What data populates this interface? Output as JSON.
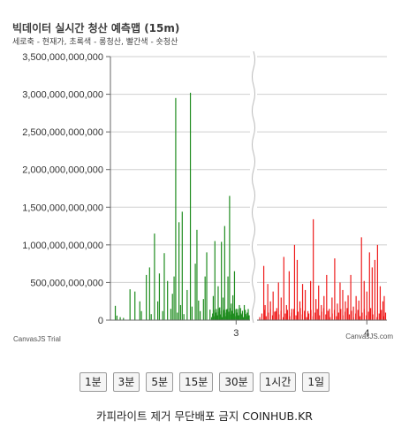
{
  "chart_data": {
    "type": "bar",
    "title": "빅데이터 실시간 청산 예측맵 (15m)",
    "subtitle": "세로축 - 현재가, 초록색 - 롱청산, 빨간색 - 숏청산",
    "ylim": [
      0,
      3500000000000
    ],
    "y_ticks": [
      {
        "value": 0,
        "label": "0"
      },
      {
        "value": 500000000000,
        "label": "500,000,000,000"
      },
      {
        "value": 1000000000000,
        "label": "1,000,000,000,000"
      },
      {
        "value": 1500000000000,
        "label": "1,500,000,000,000"
      },
      {
        "value": 2000000000000,
        "label": "2,000,000,000,000"
      },
      {
        "value": 2500000000000,
        "label": "2,500,000,000,000"
      },
      {
        "value": 3000000000000,
        "label": "3,000,000,000,000"
      },
      {
        "value": 3500000000000,
        "label": "3,500,000,000,000"
      }
    ],
    "x_ticks": [
      {
        "value": 3,
        "label": "3"
      },
      {
        "value": 4,
        "label": "4"
      }
    ],
    "grid": true,
    "axis_break": "wavy vertical break between the two x ranges",
    "series": [
      {
        "color": "#1f8c1f",
        "points": [
          [
            2.26,
            190000000000
          ],
          [
            2.27,
            60000000000
          ],
          [
            2.29,
            40000000000
          ],
          [
            2.31,
            30000000000
          ],
          [
            2.35,
            410000000000
          ],
          [
            2.38,
            380000000000
          ],
          [
            2.41,
            250000000000
          ],
          [
            2.42,
            120000000000
          ],
          [
            2.45,
            600000000000
          ],
          [
            2.47,
            700000000000
          ],
          [
            2.48,
            80000000000
          ],
          [
            2.5,
            1150000000000
          ],
          [
            2.52,
            250000000000
          ],
          [
            2.53,
            620000000000
          ],
          [
            2.55,
            120000000000
          ],
          [
            2.56,
            890000000000
          ],
          [
            2.58,
            520000000000
          ],
          [
            2.6,
            150000000000
          ],
          [
            2.61,
            350000000000
          ],
          [
            2.62,
            580000000000
          ],
          [
            2.63,
            2950000000000
          ],
          [
            2.64,
            100000000000
          ],
          [
            2.65,
            1300000000000
          ],
          [
            2.66,
            200000000000
          ],
          [
            2.67,
            1440000000000
          ],
          [
            2.68,
            80000000000
          ],
          [
            2.7,
            400000000000
          ],
          [
            2.72,
            3020000000000
          ],
          [
            2.73,
            180000000000
          ],
          [
            2.75,
            750000000000
          ],
          [
            2.76,
            1200000000000
          ],
          [
            2.77,
            260000000000
          ],
          [
            2.78,
            120000000000
          ],
          [
            2.8,
            280000000000
          ],
          [
            2.81,
            580000000000
          ],
          [
            2.82,
            900000000000
          ],
          [
            2.84,
            140000000000
          ],
          [
            2.86,
            320000000000
          ],
          [
            2.87,
            1050000000000
          ],
          [
            2.88,
            110000000000
          ],
          [
            2.89,
            450000000000
          ],
          [
            2.9,
            170000000000
          ],
          [
            2.91,
            1040000000000
          ],
          [
            2.92,
            300000000000
          ],
          [
            2.93,
            1250000000000
          ],
          [
            2.94,
            140000000000
          ],
          [
            2.95,
            580000000000
          ],
          [
            2.96,
            1650000000000
          ],
          [
            2.97,
            220000000000
          ],
          [
            2.98,
            330000000000
          ],
          [
            2.99,
            650000000000
          ],
          [
            3.0,
            150000000000
          ],
          [
            3.02,
            200000000000
          ],
          [
            3.03,
            90000000000
          ],
          [
            3.05,
            200000000000
          ],
          [
            3.06,
            80000000000
          ]
        ]
      },
      {
        "color": "#ee1c1c",
        "points": [
          [
            3.23,
            720000000000
          ],
          [
            3.24,
            200000000000
          ],
          [
            3.26,
            480000000000
          ],
          [
            3.28,
            250000000000
          ],
          [
            3.3,
            380000000000
          ],
          [
            3.32,
            120000000000
          ],
          [
            3.34,
            500000000000
          ],
          [
            3.36,
            300000000000
          ],
          [
            3.38,
            840000000000
          ],
          [
            3.4,
            200000000000
          ],
          [
            3.42,
            650000000000
          ],
          [
            3.44,
            150000000000
          ],
          [
            3.46,
            1000000000000
          ],
          [
            3.48,
            800000000000
          ],
          [
            3.5,
            250000000000
          ],
          [
            3.52,
            480000000000
          ],
          [
            3.54,
            400000000000
          ],
          [
            3.56,
            120000000000
          ],
          [
            3.58,
            520000000000
          ],
          [
            3.6,
            1340000000000
          ],
          [
            3.62,
            280000000000
          ],
          [
            3.64,
            460000000000
          ],
          [
            3.66,
            200000000000
          ],
          [
            3.68,
            320000000000
          ],
          [
            3.7,
            600000000000
          ],
          [
            3.72,
            150000000000
          ],
          [
            3.74,
            300000000000
          ],
          [
            3.76,
            820000000000
          ],
          [
            3.78,
            220000000000
          ],
          [
            3.8,
            500000000000
          ],
          [
            3.82,
            400000000000
          ],
          [
            3.84,
            250000000000
          ],
          [
            3.86,
            330000000000
          ],
          [
            3.88,
            600000000000
          ],
          [
            3.9,
            180000000000
          ],
          [
            3.92,
            320000000000
          ],
          [
            3.94,
            260000000000
          ],
          [
            3.96,
            1100000000000
          ],
          [
            3.98,
            520000000000
          ],
          [
            4.0,
            380000000000
          ],
          [
            4.02,
            900000000000
          ],
          [
            4.04,
            700000000000
          ],
          [
            4.06,
            800000000000
          ],
          [
            4.08,
            1000000000000
          ],
          [
            4.1,
            450000000000
          ],
          [
            4.12,
            250000000000
          ],
          [
            4.13,
            320000000000
          ]
        ]
      }
    ]
  },
  "credits": {
    "left": "CanvasJS Trial",
    "right": "CanvasJS.com"
  },
  "interval_buttons": [
    "1분",
    "3분",
    "5분",
    "15분",
    "30분",
    "1시간",
    "1일"
  ],
  "footer": {
    "text": "카피라이트 제거 무단배포 금지 COINHUB.KR"
  }
}
